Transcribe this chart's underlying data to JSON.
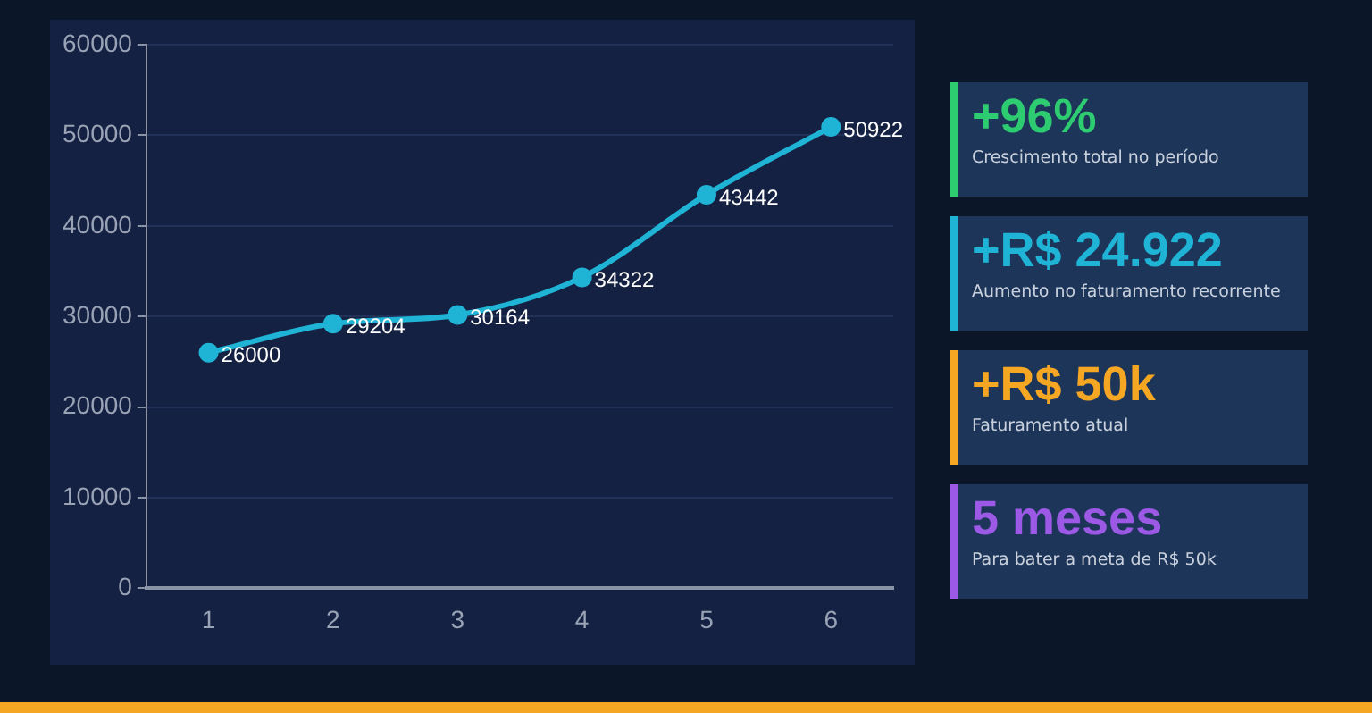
{
  "chart_data": [
    {
      "type": "line",
      "categories": [
        "1",
        "2",
        "3",
        "4",
        "5",
        "6"
      ],
      "series": [
        {
          "color": "#1fb3d6",
          "values": [
            26000,
            29204,
            30164,
            34322,
            43442,
            50922
          ]
        }
      ],
      "ylim": [
        0,
        60000
      ],
      "yticks": [
        0,
        10000,
        20000,
        30000,
        40000,
        50000,
        60000
      ],
      "grid": "y",
      "legend": false,
      "marker": "circle",
      "line_style": "solid",
      "data_labels": true
    },
    {
      "type": "other",
      "colors": [
        "#2ecc71",
        "#1fb3d6",
        "#f5a623",
        "#9b59e6"
      ],
      "annotations": [
        "+96%",
        "Crescimento total no período",
        "+R$ 24.922",
        "Aumento no faturamento recorrente",
        "+R$ 50k",
        "Faturamento atual",
        "5 meses",
        "Para bater a meta de R$ 50k"
      ]
    }
  ]
}
